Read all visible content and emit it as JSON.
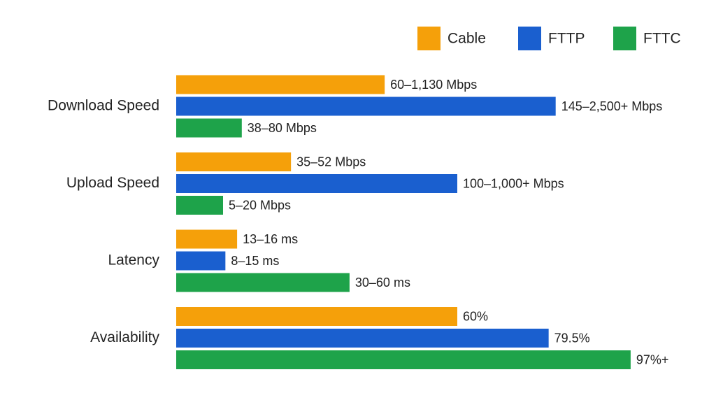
{
  "chart_data": {
    "type": "hbar",
    "categories": [
      "Download Speed",
      "Upload Speed",
      "Latency",
      "Availability"
    ],
    "xlim": [
      0,
      100
    ],
    "legend": "top-right",
    "series": [
      {
        "name": "Cable",
        "color": "#f5a00a",
        "values": [
          44.5,
          24.5,
          13,
          60
        ],
        "value_labels": [
          "60–1,130 Mbps",
          "35–52 Mbps",
          "13–16 ms",
          "60%"
        ]
      },
      {
        "name": "FTTP",
        "color": "#1a5fcf",
        "values": [
          81,
          60,
          10.5,
          79.5
        ],
        "value_labels": [
          "145–2,500+ Mbps",
          "100–1,000+ Mbps",
          "8–15 ms",
          "79.5%"
        ]
      },
      {
        "name": "FTTC",
        "color": "#1ea34a",
        "values": [
          14,
          10,
          37,
          97
        ],
        "value_labels": [
          "38–80 Mbps",
          "5–20 Mbps",
          "30–60 ms",
          "97%+"
        ]
      }
    ]
  }
}
